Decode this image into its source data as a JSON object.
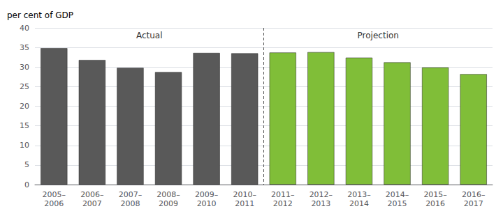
{
  "chart_data": {
    "type": "bar",
    "categories": [
      "2005–\n2006",
      "2006–\n2007",
      "2007–\n2008",
      "2008–\n2009",
      "2009–\n2010",
      "2010–\n2011",
      "2011–\n2012",
      "2012–\n2013",
      "2013–\n2014",
      "2014–\n2015",
      "2015–\n2016",
      "2016–\n2017"
    ],
    "series": [
      {
        "name": "Actual",
        "color": "#595959",
        "values": [
          34.8,
          31.8,
          29.8,
          28.7,
          33.6,
          33.5,
          null,
          null,
          null,
          null,
          null,
          null
        ]
      },
      {
        "name": "Projection",
        "color": "#80be38",
        "values": [
          null,
          null,
          null,
          null,
          null,
          null,
          33.7,
          33.8,
          32.4,
          31.2,
          29.9,
          28.2
        ]
      }
    ],
    "ylabel": "per cent of GDP",
    "ylim": [
      0,
      40
    ],
    "yticks": [
      0,
      5,
      10,
      15,
      20,
      25,
      30,
      35,
      40
    ],
    "grid": true
  }
}
